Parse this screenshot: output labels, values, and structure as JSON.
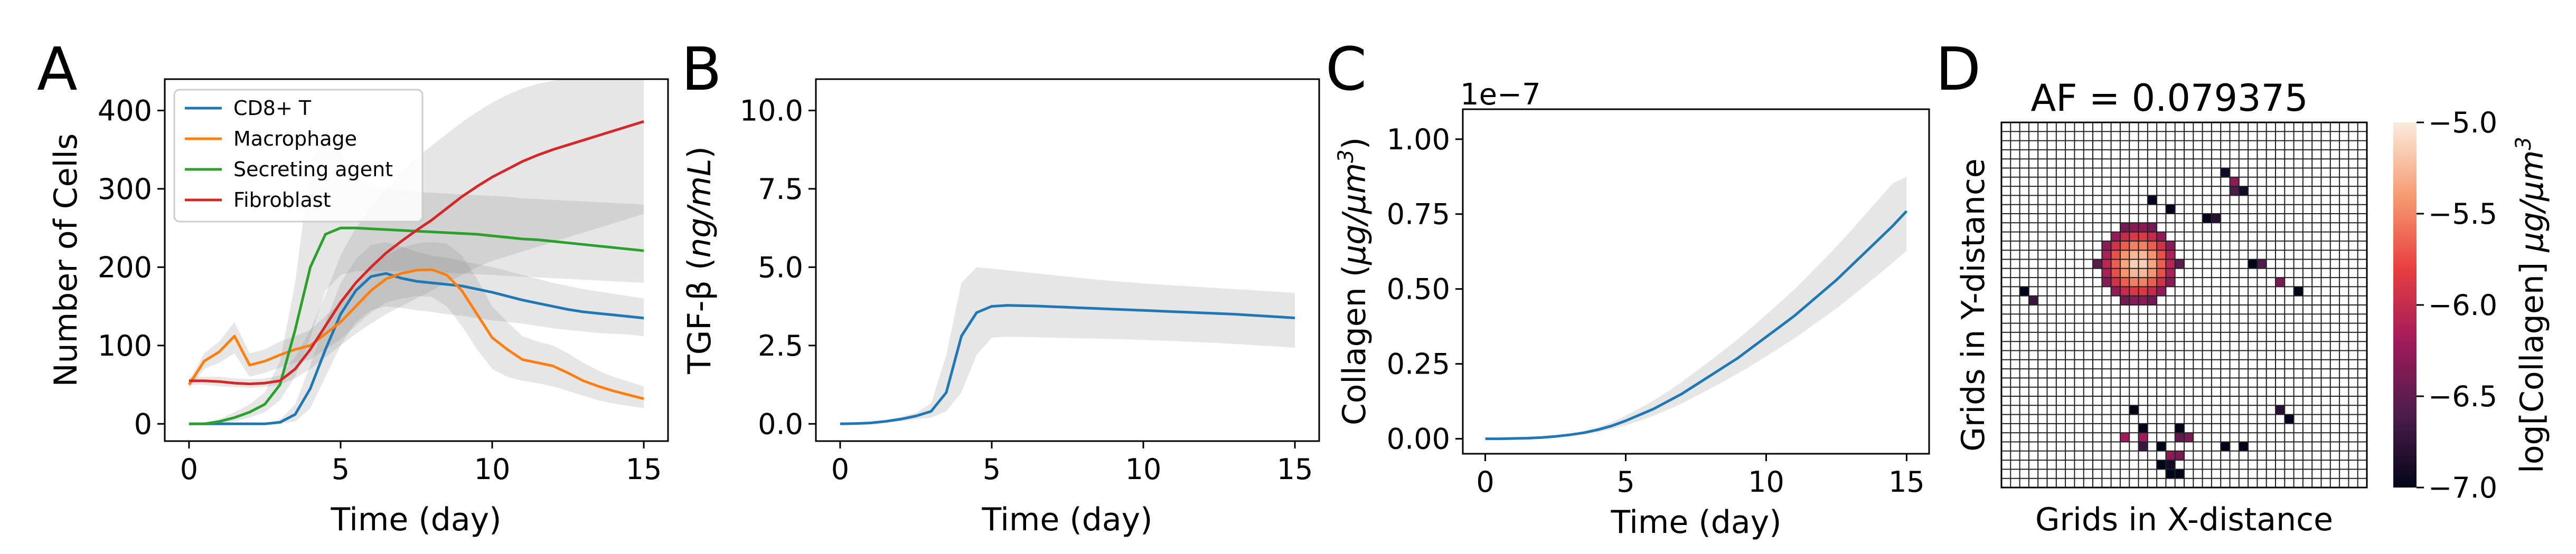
{
  "chart_data": [
    {
      "type": "line",
      "panel": "A",
      "xlabel": "Time (day)",
      "ylabel": "Number of Cells",
      "xlim": [
        -0.8,
        15.8
      ],
      "ylim": [
        -22,
        440
      ],
      "xticks": [
        0,
        5,
        10,
        15
      ],
      "yticks": [
        0,
        100,
        200,
        300,
        400
      ],
      "legend_position": "top-left",
      "x": [
        0,
        0.5,
        1,
        1.5,
        2,
        2.5,
        3,
        3.5,
        4,
        4.5,
        5,
        5.5,
        6,
        6.5,
        7,
        7.5,
        8,
        8.5,
        9,
        9.5,
        10,
        10.5,
        11,
        11.5,
        12,
        12.5,
        13,
        13.5,
        14,
        14.5,
        15
      ],
      "series": [
        {
          "name": "CD8+ T",
          "color": "#1f77b4",
          "values": [
            0,
            0,
            0,
            0,
            0,
            0,
            2,
            12,
            45,
            95,
            140,
            170,
            188,
            192,
            186,
            182,
            180,
            178,
            176,
            172,
            168,
            163,
            158,
            154,
            150,
            146,
            143,
            141,
            139,
            137,
            135
          ],
          "lower": [
            0,
            0,
            0,
            0,
            0,
            0,
            0,
            3,
            20,
            60,
            100,
            130,
            145,
            150,
            148,
            145,
            143,
            140,
            138,
            135,
            132,
            130,
            128,
            125,
            122,
            120,
            118,
            116,
            115,
            114,
            112
          ],
          "upper": [
            0,
            0,
            0,
            0,
            0,
            0,
            5,
            25,
            75,
            130,
            180,
            210,
            228,
            232,
            226,
            220,
            215,
            212,
            208,
            204,
            200,
            195,
            190,
            185,
            180,
            176,
            172,
            169,
            166,
            163,
            160
          ]
        },
        {
          "name": "Macrophage",
          "color": "#ff7f0e",
          "values": [
            50,
            80,
            92,
            112,
            75,
            80,
            88,
            95,
            100,
            115,
            130,
            150,
            170,
            185,
            192,
            196,
            197,
            190,
            170,
            140,
            110,
            95,
            82,
            78,
            74,
            65,
            55,
            48,
            42,
            37,
            32
          ],
          "lower": [
            45,
            70,
            78,
            90,
            60,
            65,
            72,
            78,
            82,
            95,
            108,
            125,
            142,
            155,
            160,
            163,
            162,
            150,
            125,
            95,
            70,
            60,
            55,
            52,
            48,
            42,
            36,
            30,
            26,
            23,
            20
          ],
          "upper": [
            55,
            90,
            105,
            130,
            90,
            95,
            105,
            112,
            120,
            138,
            155,
            175,
            198,
            215,
            225,
            230,
            232,
            230,
            215,
            185,
            150,
            130,
            112,
            105,
            100,
            90,
            78,
            68,
            60,
            54,
            48
          ]
        },
        {
          "name": "Secreting agent",
          "color": "#2ca02c",
          "values": [
            0,
            0,
            3,
            8,
            15,
            25,
            50,
            120,
            200,
            242,
            250,
            250,
            249,
            248,
            247,
            246,
            245,
            244,
            243,
            242,
            240,
            238,
            236,
            235,
            233,
            231,
            229,
            227,
            225,
            223,
            221
          ],
          "lower": [
            0,
            0,
            0,
            3,
            8,
            15,
            30,
            60,
            110,
            170,
            190,
            195,
            195,
            195,
            195,
            195,
            194,
            193,
            192,
            191,
            190,
            189,
            188,
            187,
            186,
            185,
            184,
            183,
            182,
            181,
            180
          ],
          "upper": [
            0,
            0,
            6,
            15,
            25,
            40,
            80,
            180,
            330,
            380,
            345,
            315,
            305,
            300,
            298,
            296,
            295,
            294,
            293,
            292,
            291,
            290,
            288,
            287,
            286,
            285,
            284,
            283,
            282,
            281,
            280
          ]
        },
        {
          "name": "Fibroblast",
          "color": "#d62728",
          "values": [
            55,
            55,
            54,
            52,
            51,
            52,
            55,
            70,
            95,
            125,
            155,
            180,
            200,
            218,
            233,
            247,
            260,
            275,
            290,
            303,
            315,
            325,
            335,
            343,
            350,
            356,
            362,
            368,
            374,
            380,
            386
          ],
          "lower": [
            50,
            50,
            48,
            47,
            46,
            47,
            50,
            58,
            70,
            85,
            100,
            115,
            128,
            140,
            150,
            160,
            170,
            180,
            190,
            200,
            208,
            214,
            220,
            226,
            232,
            238,
            244,
            250,
            256,
            262,
            268
          ],
          "upper": [
            60,
            60,
            60,
            58,
            57,
            58,
            62,
            85,
            120,
            165,
            215,
            250,
            275,
            300,
            322,
            340,
            355,
            370,
            385,
            398,
            410,
            420,
            428,
            434,
            438,
            440,
            440,
            440,
            440,
            440,
            440
          ]
        }
      ]
    },
    {
      "type": "line",
      "panel": "B",
      "xlabel": "Time (day)",
      "ylabel": "TGF-β (ng/mL)",
      "ylabel_plain": "TGF-β (",
      "ylabel_italic": "ng/mL",
      "ylabel_close": ")",
      "xlim": [
        -0.8,
        15.8
      ],
      "ylim": [
        -0.55,
        11.0
      ],
      "xticks": [
        0,
        5,
        10,
        15
      ],
      "yticks": [
        0.0,
        2.5,
        5.0,
        7.5,
        10.0
      ],
      "ytick_labels": [
        "0.0",
        "2.5",
        "5.0",
        "7.5",
        "10.0"
      ],
      "x": [
        0,
        0.5,
        1,
        1.5,
        2,
        2.5,
        3,
        3.5,
        4,
        4.5,
        5,
        5.5,
        6,
        6.5,
        7,
        7.5,
        8,
        8.5,
        9,
        9.5,
        10,
        10.5,
        11,
        11.5,
        12,
        12.5,
        13,
        13.5,
        14,
        14.5,
        15
      ],
      "series": [
        {
          "color": "#1f77b4",
          "values": [
            0,
            0.01,
            0.03,
            0.08,
            0.15,
            0.25,
            0.4,
            1.0,
            2.8,
            3.55,
            3.75,
            3.78,
            3.77,
            3.76,
            3.74,
            3.72,
            3.7,
            3.68,
            3.66,
            3.64,
            3.62,
            3.6,
            3.58,
            3.56,
            3.54,
            3.52,
            3.5,
            3.47,
            3.44,
            3.41,
            3.38
          ],
          "lower": [
            0,
            0,
            0.01,
            0.04,
            0.08,
            0.15,
            0.2,
            0.4,
            1.0,
            2.2,
            2.75,
            2.78,
            2.77,
            2.76,
            2.75,
            2.74,
            2.73,
            2.72,
            2.71,
            2.7,
            2.68,
            2.66,
            2.64,
            2.62,
            2.6,
            2.58,
            2.55,
            2.52,
            2.49,
            2.46,
            2.43
          ],
          "upper": [
            0,
            0.02,
            0.06,
            0.12,
            0.22,
            0.35,
            0.65,
            2.2,
            4.5,
            5.0,
            4.95,
            4.9,
            4.85,
            4.8,
            4.75,
            4.7,
            4.65,
            4.6,
            4.56,
            4.52,
            4.48,
            4.45,
            4.42,
            4.39,
            4.36,
            4.33,
            4.3,
            4.27,
            4.24,
            4.21,
            4.18
          ]
        }
      ]
    },
    {
      "type": "line",
      "panel": "C",
      "xlabel": "Time (day)",
      "ylabel": "Collagen (μg/μm³)",
      "ylabel_plain": "Collagen (",
      "ylabel_italic": "μg/μm",
      "ylabel_sup": "3",
      "ylabel_close": ")",
      "offset_text": "1e−7",
      "xlim": [
        -0.8,
        15.8
      ],
      "ylim": [
        -0.05,
        1.1
      ],
      "xticks": [
        0,
        5,
        10,
        15
      ],
      "yticks": [
        0.0,
        0.25,
        0.5,
        0.75,
        1.0
      ],
      "ytick_labels": [
        "0.00",
        "0.25",
        "0.50",
        "0.75",
        "1.00"
      ],
      "x": [
        0,
        0.5,
        1,
        1.5,
        2,
        2.5,
        3,
        3.5,
        4,
        4.5,
        5,
        5.5,
        6,
        6.5,
        7,
        7.5,
        8,
        8.5,
        9,
        9.5,
        10,
        10.5,
        11,
        11.5,
        12,
        12.5,
        13,
        13.5,
        14,
        14.5,
        15
      ],
      "series": [
        {
          "color": "#1f77b4",
          "values": [
            0,
            0,
            0.001,
            0.002,
            0.004,
            0.008,
            0.013,
            0.02,
            0.03,
            0.043,
            0.06,
            0.08,
            0.1,
            0.125,
            0.15,
            0.18,
            0.21,
            0.24,
            0.27,
            0.305,
            0.34,
            0.375,
            0.41,
            0.45,
            0.49,
            0.53,
            0.575,
            0.62,
            0.665,
            0.71,
            0.76
          ],
          "lower": [
            0,
            0,
            0.0008,
            0.0015,
            0.003,
            0.006,
            0.01,
            0.015,
            0.022,
            0.032,
            0.045,
            0.06,
            0.077,
            0.097,
            0.118,
            0.142,
            0.167,
            0.192,
            0.218,
            0.246,
            0.275,
            0.305,
            0.335,
            0.368,
            0.401,
            0.435,
            0.472,
            0.51,
            0.548,
            0.587,
            0.628
          ],
          "upper": [
            0,
            0,
            0.0013,
            0.0026,
            0.005,
            0.01,
            0.016,
            0.025,
            0.038,
            0.055,
            0.077,
            0.102,
            0.128,
            0.158,
            0.19,
            0.225,
            0.26,
            0.296,
            0.333,
            0.373,
            0.414,
            0.456,
            0.498,
            0.545,
            0.593,
            0.641,
            0.693,
            0.746,
            0.799,
            0.852,
            0.875
          ]
        }
      ]
    },
    {
      "type": "heatmap",
      "panel": "D",
      "title": "AF = 0.079375",
      "xlabel": "Grids in X-distance",
      "ylabel": "Grids in Y-distance",
      "colorbar_label": "log[Collagen] μg/μm³",
      "colorbar_label_plain": "log[Collagen] ",
      "colorbar_label_italic": "μg/μm",
      "colorbar_label_sup": "3",
      "colorbar_range": [
        -7.0,
        -5.0
      ],
      "colorbar_ticks": [
        -7.0,
        -6.5,
        -6.0,
        -5.5,
        -5.0
      ],
      "colorbar_tick_labels": [
        "−7.0",
        "−6.5",
        "−6.0",
        "−5.5",
        "−5.0"
      ],
      "grid_size": [
        40,
        40
      ],
      "empty_color": "#ffffff",
      "blob": {
        "center": [
          14.5,
          15.0
        ],
        "radius": 4.6,
        "peak": -5.1,
        "edge": -6.6
      },
      "cells": [
        [
          24,
          5,
          -6.9
        ],
        [
          25,
          6,
          -6.3
        ],
        [
          25,
          7,
          -6.6
        ],
        [
          26,
          7,
          -6.9
        ],
        [
          16,
          8,
          -7.0
        ],
        [
          18,
          9,
          -7.0
        ],
        [
          22,
          10,
          -7.0
        ],
        [
          23,
          10,
          -6.8
        ],
        [
          27,
          15,
          -7.0
        ],
        [
          28,
          15,
          -6.6
        ],
        [
          30,
          17,
          -6.4
        ],
        [
          2,
          18,
          -7.0
        ],
        [
          3,
          19,
          -6.7
        ],
        [
          32,
          18,
          -7.0
        ],
        [
          14,
          31,
          -7.0
        ],
        [
          30,
          31,
          -6.8
        ],
        [
          31,
          32,
          -7.0
        ],
        [
          15,
          33,
          -7.0
        ],
        [
          19,
          33,
          -7.0
        ],
        [
          19,
          34,
          -6.5
        ],
        [
          20,
          34,
          -6.4
        ],
        [
          13,
          34,
          -6.2
        ],
        [
          15,
          34,
          -6.2
        ],
        [
          15,
          35,
          -6.7
        ],
        [
          17,
          35,
          -7.0
        ],
        [
          24,
          35,
          -7.0
        ],
        [
          26,
          35,
          -7.0
        ],
        [
          18,
          36,
          -6.3
        ],
        [
          19,
          36,
          -6.4
        ],
        [
          17,
          37,
          -7.0
        ],
        [
          18,
          37,
          -6.9
        ],
        [
          18,
          38,
          -7.0
        ],
        [
          19,
          38,
          -7.0
        ]
      ]
    }
  ],
  "panel_labels": {
    "a": "A",
    "b": "B",
    "c": "C",
    "d": "D"
  }
}
